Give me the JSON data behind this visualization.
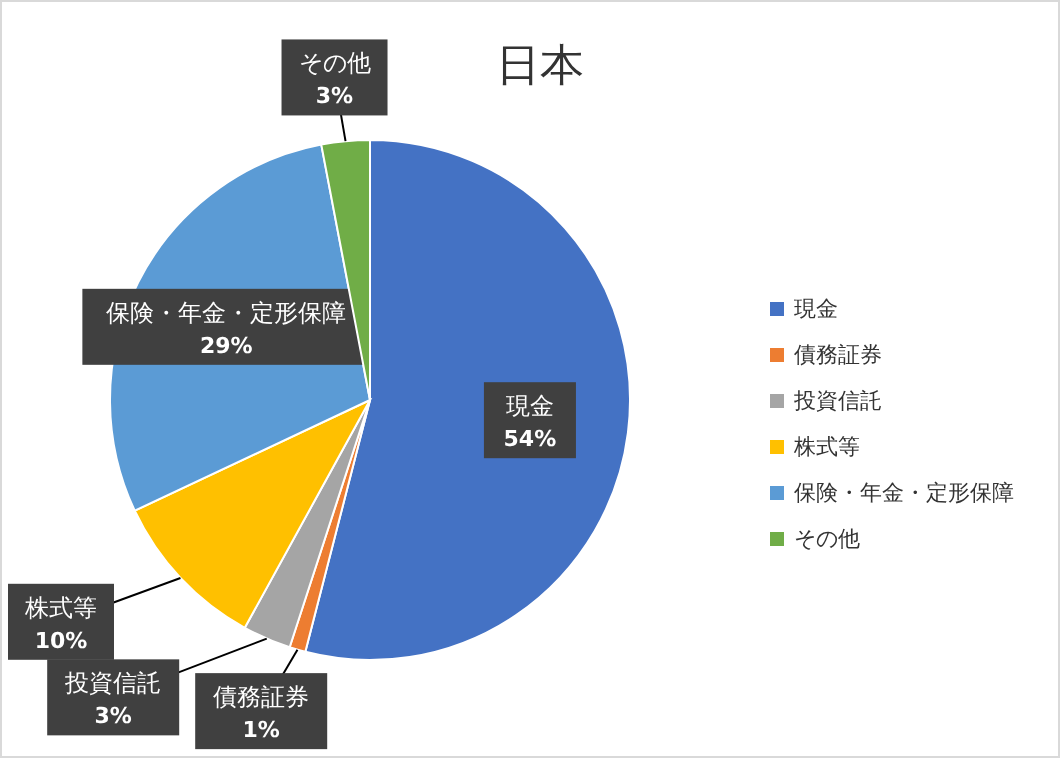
{
  "chart_data": {
    "type": "pie",
    "title": "日本",
    "categories": [
      "現金",
      "債務証券",
      "投資信託",
      "株式等",
      "保険・年金・定形保障",
      "その他"
    ],
    "values": [
      54,
      1,
      3,
      10,
      29,
      3
    ],
    "colors": [
      "#4472c4",
      "#ed7d31",
      "#a5a5a5",
      "#ffc000",
      "#5b9bd5",
      "#70ad47"
    ],
    "value_labels": [
      "54%",
      "1%",
      "3%",
      "10%",
      "29%",
      "3%"
    ],
    "legend": "right"
  }
}
